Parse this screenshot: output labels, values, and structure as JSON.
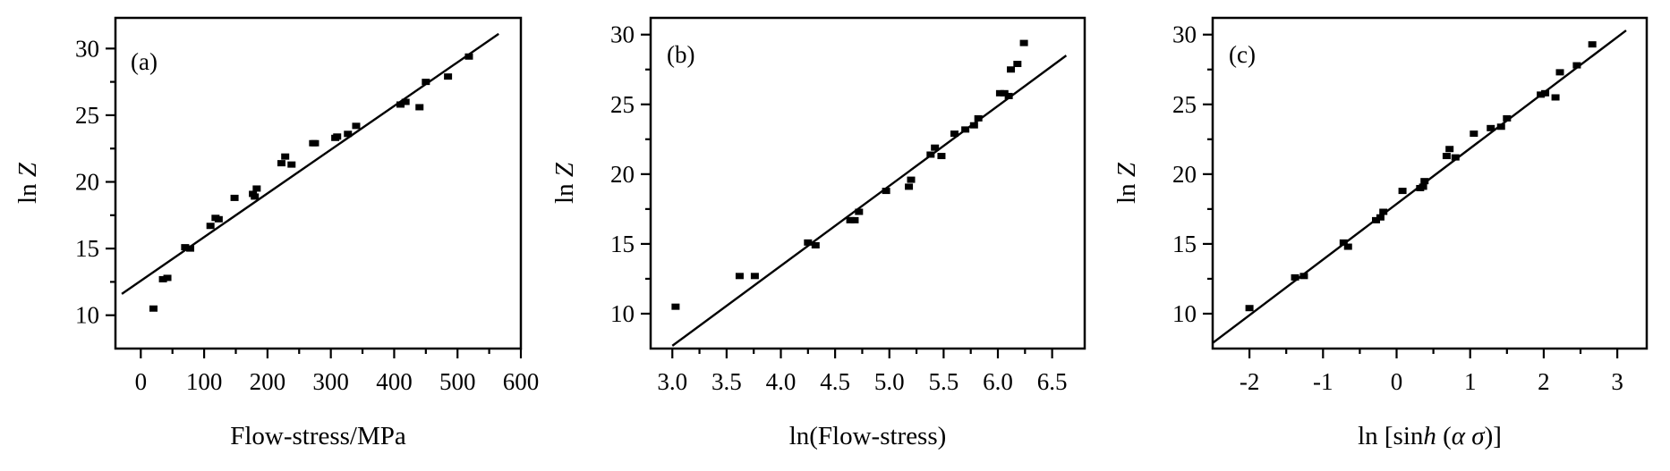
{
  "chart_data": [
    {
      "type": "scatter",
      "panel_label": "(a)",
      "xlabel": "Flow-stress/MPa",
      "ylabel": "ln Z",
      "ylabel_italic": "Z",
      "xlim": [
        -40,
        600
      ],
      "ylim": [
        7.5,
        32.3
      ],
      "xticks": [
        0,
        100,
        200,
        300,
        400,
        500,
        600
      ],
      "xtick_labels": [
        "0",
        "100",
        "200",
        "300",
        "400",
        "500",
        "600"
      ],
      "yticks": [
        10,
        15,
        20,
        25,
        30
      ],
      "ytick_labels": [
        "10",
        "15",
        "20",
        "25",
        "30"
      ],
      "grid": false,
      "points": {
        "x": [
          20,
          35,
          42,
          70,
          78,
          110,
          118,
          123,
          148,
          177,
          180,
          183,
          222,
          228,
          238,
          272,
          275,
          307,
          310,
          327,
          340,
          410,
          418,
          440,
          450,
          485,
          518
        ],
        "y": [
          10.5,
          12.7,
          12.8,
          15.1,
          15.0,
          16.7,
          17.3,
          17.2,
          18.8,
          19.1,
          18.9,
          19.5,
          21.4,
          21.9,
          21.3,
          22.9,
          22.9,
          23.3,
          23.4,
          23.6,
          24.2,
          25.8,
          26.0,
          25.6,
          27.5,
          27.9,
          29.4
        ]
      },
      "fit_line": {
        "x": [
          -30,
          565
        ],
        "y": [
          11.6,
          31.1
        ]
      }
    },
    {
      "type": "scatter",
      "panel_label": "(b)",
      "xlabel": "ln(Flow-stress)",
      "ylabel": "ln Z",
      "ylabel_italic": "Z",
      "xlim": [
        2.8,
        6.8
      ],
      "ylim": [
        7.5,
        31.2
      ],
      "xticks": [
        3.0,
        3.5,
        4.0,
        4.5,
        5.0,
        5.5,
        6.0,
        6.5
      ],
      "xtick_labels": [
        "3.0",
        "3.5",
        "4.0",
        "4.5",
        "5.0",
        "5.5",
        "6.0",
        "6.5"
      ],
      "yticks": [
        10,
        15,
        20,
        25,
        30
      ],
      "ytick_labels": [
        "10",
        "15",
        "20",
        "25",
        "30"
      ],
      "grid": false,
      "points": {
        "x": [
          3.03,
          3.62,
          3.76,
          4.25,
          4.32,
          4.64,
          4.68,
          4.72,
          4.97,
          5.18,
          5.2,
          5.38,
          5.42,
          5.48,
          5.6,
          5.7,
          5.78,
          5.82,
          6.02,
          6.06,
          6.1,
          6.12,
          6.18,
          6.24
        ],
        "y": [
          10.5,
          12.7,
          12.7,
          15.1,
          14.9,
          16.7,
          16.7,
          17.3,
          18.8,
          19.1,
          19.6,
          21.4,
          21.9,
          21.3,
          22.9,
          23.2,
          23.5,
          24.0,
          25.8,
          25.8,
          25.6,
          27.5,
          27.9,
          29.4
        ]
      },
      "fit_line": {
        "x": [
          3.0,
          6.63
        ],
        "y": [
          7.7,
          28.5
        ]
      }
    },
    {
      "type": "scatter",
      "panel_label": "(c)",
      "xlabel": "ln [sinh (α σ)]",
      "xlabel_parts": {
        "prefix": "ln [sin",
        "italic_h": "h",
        "middle": " (",
        "alpha": "α",
        "sigma": "σ",
        "suffix": ")]"
      },
      "ylabel": "ln Z",
      "ylabel_italic": "Z",
      "xlim": [
        -2.5,
        3.4
      ],
      "ylim": [
        7.5,
        31.2
      ],
      "xticks": [
        -2,
        -1,
        0,
        1,
        2,
        3
      ],
      "xtick_labels": [
        "-2",
        "-1",
        "0",
        "1",
        "2",
        "3"
      ],
      "yticks": [
        10,
        15,
        20,
        25,
        30
      ],
      "ytick_labels": [
        "10",
        "15",
        "20",
        "25",
        "30"
      ],
      "grid": false,
      "points": {
        "x": [
          -2.0,
          -1.38,
          -1.26,
          -0.72,
          -0.66,
          -0.28,
          -0.22,
          -0.18,
          0.08,
          0.32,
          0.36,
          0.38,
          0.68,
          0.72,
          0.8,
          1.05,
          1.28,
          1.42,
          1.5,
          1.96,
          2.02,
          2.16,
          2.22,
          2.45,
          2.66
        ],
        "y": [
          10.4,
          12.6,
          12.7,
          15.1,
          14.8,
          16.7,
          16.9,
          17.3,
          18.8,
          19.0,
          19.1,
          19.5,
          21.3,
          21.8,
          21.2,
          22.9,
          23.3,
          23.4,
          24.0,
          25.7,
          25.8,
          25.5,
          27.3,
          27.8,
          29.3
        ]
      },
      "fit_line": {
        "x": [
          -2.5,
          3.12
        ],
        "y": [
          7.9,
          30.3
        ]
      }
    }
  ]
}
